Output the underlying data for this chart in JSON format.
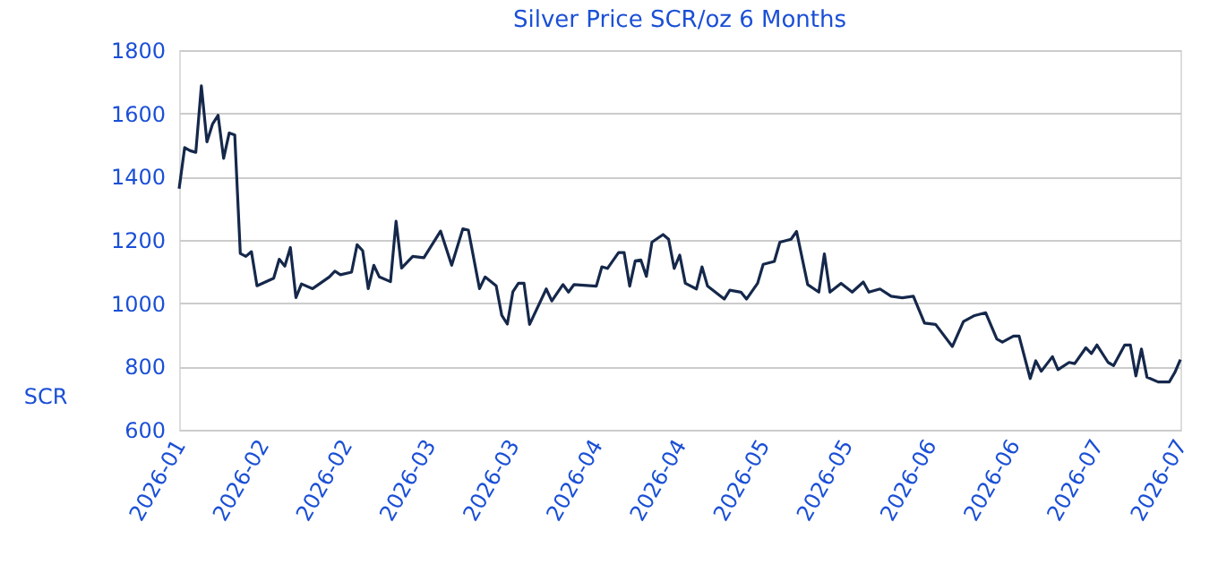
{
  "chart_data": {
    "type": "line",
    "title": "Silver Price SCR/oz 6 Months",
    "ylabel": "SCR",
    "x": [
      "2026-01-28",
      "2026-01-29",
      "2026-01-30",
      "2026-01-31",
      "2026-02-01",
      "2026-02-02",
      "2026-02-03",
      "2026-02-04",
      "2026-02-05",
      "2026-02-06",
      "2026-02-07",
      "2026-02-08",
      "2026-02-09",
      "2026-02-10",
      "2026-02-11",
      "2026-02-14",
      "2026-02-15",
      "2026-02-16",
      "2026-02-17",
      "2026-02-18",
      "2026-02-19",
      "2026-02-21",
      "2026-02-24",
      "2026-02-25",
      "2026-02-26",
      "2026-02-28",
      "2026-03-01",
      "2026-03-02",
      "2026-03-03",
      "2026-03-04",
      "2026-03-05",
      "2026-03-07",
      "2026-03-08",
      "2026-03-09",
      "2026-03-11",
      "2026-03-13",
      "2026-03-16",
      "2026-03-18",
      "2026-03-20",
      "2026-03-21",
      "2026-03-23",
      "2026-03-24",
      "2026-03-26",
      "2026-03-27",
      "2026-03-28",
      "2026-03-29",
      "2026-03-30",
      "2026-03-31",
      "2026-04-01",
      "2026-04-04",
      "2026-04-05",
      "2026-04-07",
      "2026-04-08",
      "2026-04-09",
      "2026-04-13",
      "2026-04-14",
      "2026-04-15",
      "2026-04-17",
      "2026-04-18",
      "2026-04-19",
      "2026-04-20",
      "2026-04-21",
      "2026-04-22",
      "2026-04-23",
      "2026-04-25",
      "2026-04-26",
      "2026-04-27",
      "2026-04-28",
      "2026-04-29",
      "2026-05-01",
      "2026-05-02",
      "2026-05-03",
      "2026-05-06",
      "2026-05-07",
      "2026-05-09",
      "2026-05-10",
      "2026-05-12",
      "2026-05-13",
      "2026-05-15",
      "2026-05-16",
      "2026-05-18",
      "2026-05-19",
      "2026-05-21",
      "2026-05-23",
      "2026-05-24",
      "2026-05-25",
      "2026-05-27",
      "2026-05-29",
      "2026-05-31",
      "2026-06-01",
      "2026-06-03",
      "2026-06-05",
      "2026-06-07",
      "2026-06-09",
      "2026-06-11",
      "2026-06-13",
      "2026-06-16",
      "2026-06-18",
      "2026-06-20",
      "2026-06-22",
      "2026-06-24",
      "2026-06-25",
      "2026-06-27",
      "2026-06-28",
      "2026-06-30",
      "2026-07-01",
      "2026-07-02",
      "2026-07-04",
      "2026-07-05",
      "2026-07-07",
      "2026-07-08",
      "2026-07-10",
      "2026-07-11",
      "2026-07-12",
      "2026-07-14",
      "2026-07-15",
      "2026-07-17",
      "2026-07-18",
      "2026-07-19",
      "2026-07-20",
      "2026-07-21",
      "2026-07-23",
      "2026-07-25",
      "2026-07-26",
      "2026-07-27"
    ],
    "series": [
      {
        "color": "#15284b",
        "values": [
          1362,
          1492,
          1482,
          1477,
          1687,
          1510,
          1566,
          1594,
          1458,
          1538,
          1532,
          1157,
          1148,
          1163,
          1055,
          1079,
          1139,
          1117,
          1176,
          1018,
          1061,
          1046,
          1083,
          1101,
          1090,
          1098,
          1185,
          1166,
          1046,
          1120,
          1083,
          1068,
          1259,
          1111,
          1148,
          1144,
          1228,
          1120,
          1235,
          1231,
          1046,
          1083,
          1055,
          962,
          934,
          1036,
          1063,
          1063,
          933,
          1045,
          1007,
          1059,
          1035,
          1059,
          1054,
          1115,
          1110,
          1160,
          1160,
          1054,
          1134,
          1137,
          1085,
          1193,
          1217,
          1202,
          1110,
          1152,
          1063,
          1045,
          1115,
          1054,
          1013,
          1041,
          1035,
          1013,
          1063,
          1123,
          1132,
          1193,
          1202,
          1227,
          1059,
          1035,
          1156,
          1035,
          1063,
          1035,
          1067,
          1035,
          1045,
          1022,
          1017,
          1022,
          937,
          933,
          863,
          942,
          961,
          970,
          887,
          877,
          896,
          896,
          762,
          818,
          785,
          831,
          790,
          813,
          809,
          859,
          841,
          868,
          813,
          803,
          868,
          868,
          770,
          855,
          766,
          751,
          751,
          781,
          822
        ]
      }
    ],
    "xlim": [
      "2026-01-28",
      "2026-07-27"
    ],
    "xticks": [
      {
        "value": "2026-01-28",
        "label": "2026-01"
      },
      {
        "value": "2026-02-12",
        "label": "2026-02"
      },
      {
        "value": "2026-02-27",
        "label": "2026-02"
      },
      {
        "value": "2026-03-14",
        "label": "2026-03"
      },
      {
        "value": "2026-03-29",
        "label": "2026-03"
      },
      {
        "value": "2026-04-13",
        "label": "2026-04"
      },
      {
        "value": "2026-04-28",
        "label": "2026-04"
      },
      {
        "value": "2026-05-13",
        "label": "2026-05"
      },
      {
        "value": "2026-05-28",
        "label": "2026-05"
      },
      {
        "value": "2026-06-12",
        "label": "2026-06"
      },
      {
        "value": "2026-06-27",
        "label": "2026-06"
      },
      {
        "value": "2026-07-12",
        "label": "2026-07"
      },
      {
        "value": "2026-07-27",
        "label": "2026-07"
      }
    ],
    "ylim": [
      600,
      1800
    ],
    "yticks": [
      600,
      800,
      1000,
      1200,
      1400,
      1600,
      1800
    ],
    "grid": "y",
    "legend": false,
    "marker": "none",
    "line_style": "solid"
  }
}
